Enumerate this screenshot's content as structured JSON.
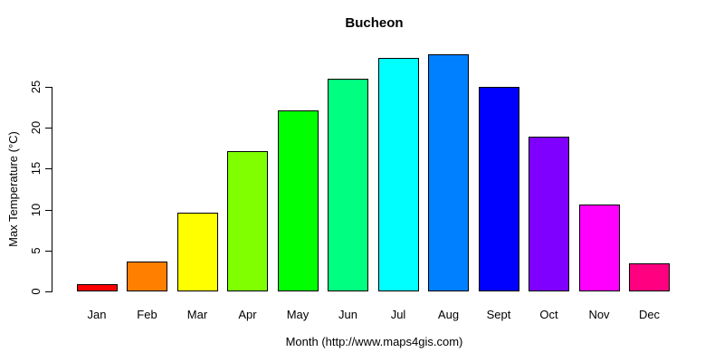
{
  "figure": {
    "background": "#ffffff",
    "text_color": "#000000"
  },
  "chart_data": {
    "type": "bar",
    "title": "Bucheon",
    "xlabel": "Month (http://www.maps4gis.com)",
    "ylabel": "Max Temperature (°C)",
    "categories": [
      "Jan",
      "Feb",
      "Mar",
      "Apr",
      "May",
      "Jun",
      "Jul",
      "Aug",
      "Sept",
      "Oct",
      "Nov",
      "Dec"
    ],
    "values": [
      0.9,
      3.6,
      9.6,
      17.1,
      22.1,
      26.0,
      28.5,
      29.0,
      25.0,
      18.9,
      10.6,
      3.4
    ],
    "bar_colors": [
      "#FF0000",
      "#FF8000",
      "#FFFF00",
      "#80FF00",
      "#00FF00",
      "#00FF80",
      "#00FFFF",
      "#0080FF",
      "#0000FF",
      "#8000FF",
      "#FF00FF",
      "#FF0080"
    ],
    "bar_border_color": "#000000",
    "yticks": [
      0,
      5,
      10,
      15,
      20,
      25
    ],
    "ylim": [
      0,
      29.5
    ],
    "grid": false,
    "legend": false,
    "tick_label_rotation_deg": -90
  }
}
